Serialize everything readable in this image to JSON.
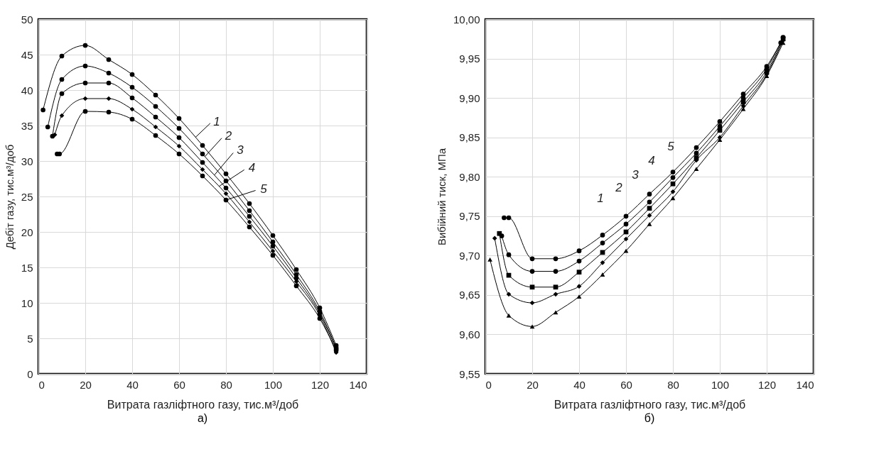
{
  "chart_data": [
    {
      "type": "line",
      "title": "а)",
      "xlabel": "Витрата газліфтного газу, тис.м³/доб",
      "ylabel": "Дебіт газу, тис.м³/доб",
      "xlim": [
        0,
        140
      ],
      "xticks": [
        0,
        20,
        40,
        60,
        80,
        100,
        120,
        140
      ],
      "ylim": [
        0,
        50
      ],
      "yticks": [
        0,
        5,
        10,
        15,
        20,
        25,
        30,
        35,
        40,
        45,
        50
      ],
      "grid": true,
      "legend": "right",
      "series": [
        {
          "name": "1",
          "color": "#000000",
          "marker": "circle",
          "x": [
            2,
            10,
            20,
            30,
            40,
            50,
            60,
            70,
            80,
            90,
            100,
            110,
            120,
            127
          ],
          "values": [
            37.2,
            44.8,
            46.3,
            44.3,
            42.2,
            39.3,
            36.0,
            32.2,
            28.2,
            24.0,
            19.5,
            14.7,
            9.3,
            4.0
          ]
        },
        {
          "name": "2",
          "color": "#000000",
          "marker": "circle",
          "x": [
            4,
            10,
            20,
            30,
            40,
            50,
            60,
            70,
            80,
            90,
            100,
            110,
            120,
            127
          ],
          "values": [
            34.8,
            41.5,
            43.4,
            42.4,
            40.4,
            37.7,
            34.6,
            31.0,
            27.2,
            23.0,
            18.6,
            14.0,
            8.8,
            3.7
          ]
        },
        {
          "name": "3",
          "color": "#000000",
          "marker": "circle",
          "x": [
            6,
            10,
            20,
            30,
            40,
            50,
            60,
            70,
            80,
            90,
            100,
            110,
            120,
            127
          ],
          "values": [
            33.5,
            39.5,
            41.0,
            41.0,
            38.9,
            36.2,
            33.3,
            29.8,
            26.2,
            22.2,
            18.0,
            13.5,
            8.5,
            3.5
          ]
        },
        {
          "name": "4",
          "color": "#000000",
          "marker": "diamond",
          "x": [
            7,
            10,
            20,
            30,
            40,
            50,
            60,
            70,
            80,
            90,
            100,
            110,
            120,
            127
          ],
          "values": [
            33.7,
            36.4,
            38.8,
            38.8,
            37.3,
            34.8,
            32.1,
            28.8,
            25.4,
            21.4,
            17.3,
            13.0,
            8.2,
            3.0
          ]
        },
        {
          "name": "5",
          "color": "#000000",
          "marker": "circle",
          "x": [
            8,
            9,
            20,
            30,
            40,
            50,
            60,
            70,
            80,
            90,
            100,
            110,
            120,
            127
          ],
          "values": [
            31.0,
            31.0,
            37.0,
            36.9,
            35.9,
            33.6,
            31.0,
            27.9,
            24.5,
            20.7,
            16.7,
            12.4,
            7.8,
            3.3
          ]
        }
      ]
    },
    {
      "type": "line",
      "title": "б)",
      "xlabel": "Витрата газліфтного газу, тис.м³/доб",
      "ylabel": "Вибійний тиск, МПа",
      "xlim": [
        0,
        140
      ],
      "xticks": [
        0,
        20,
        40,
        60,
        80,
        100,
        120,
        140
      ],
      "ylim": [
        9.55,
        10.0
      ],
      "yticks": [
        {
          "value": 9.55,
          "label": "9,55"
        },
        {
          "value": 9.6,
          "label": "9,60"
        },
        {
          "value": 9.65,
          "label": "9,65"
        },
        {
          "value": 9.7,
          "label": "9,70"
        },
        {
          "value": 9.75,
          "label": "9,75"
        },
        {
          "value": 9.8,
          "label": "9,80"
        },
        {
          "value": 9.85,
          "label": "9,85"
        },
        {
          "value": 9.9,
          "label": "9,90"
        },
        {
          "value": 9.95,
          "label": "9,95"
        },
        {
          "value": 10.0,
          "label": "10,00"
        }
      ],
      "grid": true,
      "series": [
        {
          "color": "#000000",
          "marker": "circle",
          "x": [
            8,
            10,
            20,
            30,
            40,
            50,
            60,
            70,
            80,
            90,
            100,
            110,
            120,
            126
          ],
          "values": [
            9.748,
            9.748,
            9.696,
            9.696,
            9.706,
            9.726,
            9.75,
            9.778,
            9.806,
            9.837,
            9.87,
            9.905,
            9.94,
            9.97
          ]
        },
        {
          "color": "#000000",
          "marker": "circle",
          "x": [
            7,
            10,
            20,
            30,
            40,
            50,
            60,
            70,
            80,
            90,
            100,
            110,
            120,
            127
          ],
          "values": [
            9.725,
            9.701,
            9.68,
            9.68,
            9.693,
            9.716,
            9.74,
            9.768,
            9.799,
            9.83,
            9.864,
            9.9,
            9.937,
            9.977
          ]
        },
        {
          "color": "#000000",
          "marker": "square",
          "x": [
            6,
            10,
            20,
            30,
            40,
            50,
            60,
            70,
            80,
            90,
            100,
            110,
            120,
            127
          ],
          "values": [
            9.728,
            9.675,
            9.66,
            9.66,
            9.679,
            9.704,
            9.73,
            9.76,
            9.791,
            9.824,
            9.859,
            9.895,
            9.933,
            9.975
          ]
        },
        {
          "color": "#000000",
          "marker": "diamond",
          "x": [
            4,
            10,
            20,
            30,
            40,
            50,
            60,
            70,
            80,
            90,
            100,
            110,
            120,
            127
          ],
          "values": [
            9.722,
            9.651,
            9.64,
            9.651,
            9.661,
            9.691,
            9.721,
            9.751,
            9.781,
            9.821,
            9.85,
            9.89,
            9.93,
            9.973
          ]
        },
        {
          "color": "#000000",
          "marker": "triangle",
          "x": [
            2,
            10,
            20,
            30,
            40,
            50,
            60,
            70,
            80,
            90,
            100,
            110,
            120,
            127
          ],
          "values": [
            9.695,
            9.624,
            9.61,
            9.628,
            9.648,
            9.676,
            9.706,
            9.74,
            9.773,
            9.81,
            9.847,
            9.886,
            9.928,
            9.97
          ]
        }
      ],
      "annotations": [
        "1",
        "2",
        "3",
        "4",
        "5"
      ]
    }
  ]
}
